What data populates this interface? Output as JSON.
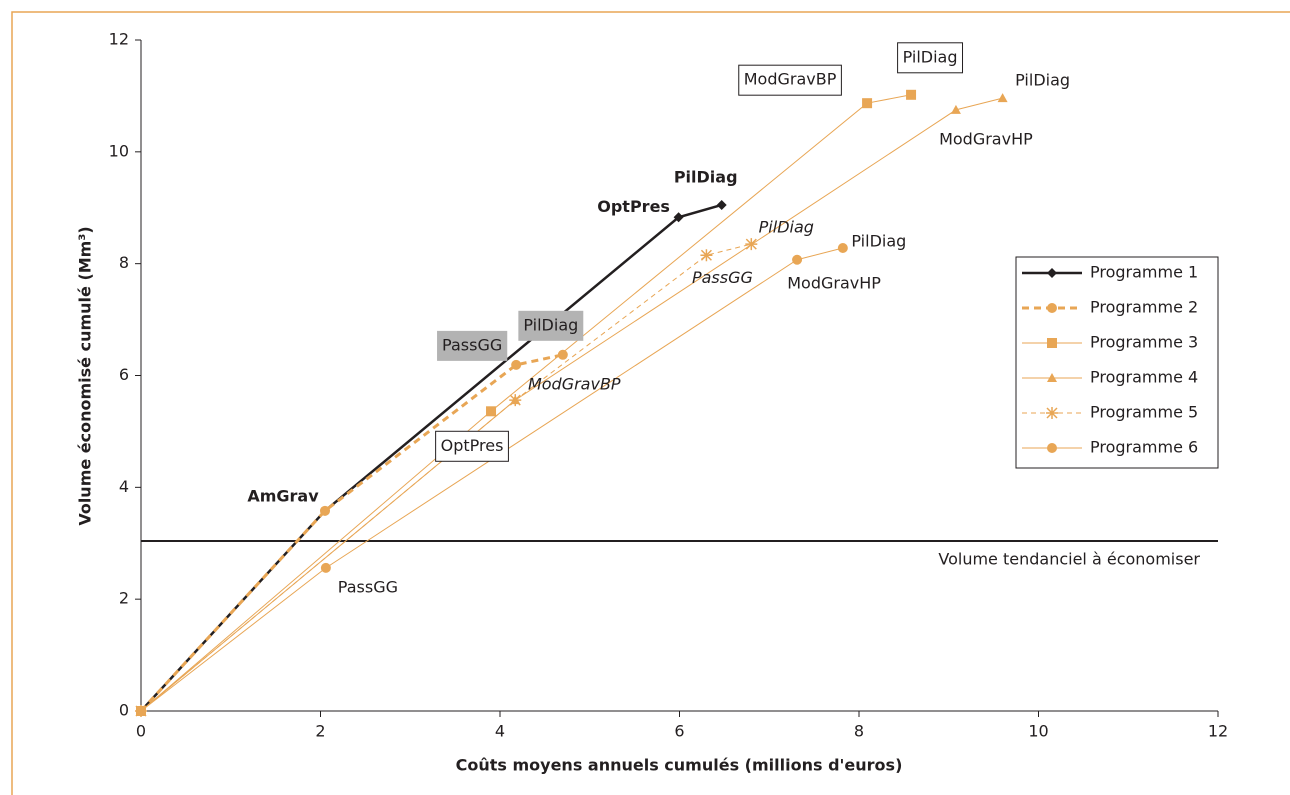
{
  "chart_data": {
    "type": "line",
    "x_label": "Coûts moyens annuels cumulés (millions d'euros)",
    "y_label": "Volume économisé cumulé (Mm³)",
    "xlim": [
      0,
      12
    ],
    "xticks": [
      0,
      2,
      4,
      6,
      8,
      10,
      12
    ],
    "ylim": [
      0,
      12
    ],
    "yticks": [
      0,
      2,
      4,
      6,
      8,
      10,
      12
    ],
    "legend_position": "right",
    "reference_line": {
      "value": 3.04,
      "label": "Volume tendanciel à économiser",
      "color": "#231f20"
    },
    "series": [
      {
        "name": "Programme 1",
        "color": "#231f20",
        "marker": "diamond",
        "dashed": false,
        "width": 2.5,
        "label_style": "bold",
        "x": [
          0,
          2.05,
          5.99,
          6.47
        ],
        "values": [
          0,
          3.58,
          8.83,
          9.05
        ],
        "point_labels": [
          null,
          "AmGrav",
          "OptPres",
          "PilDiag"
        ]
      },
      {
        "name": "Programme 2",
        "color": "#e8a655",
        "marker": "circle",
        "dashed": true,
        "width": 3,
        "label_style": "shaded",
        "x": [
          0,
          2.05,
          4.18,
          4.7
        ],
        "values": [
          0,
          3.58,
          6.19,
          6.37
        ],
        "point_labels": [
          null,
          null,
          "PassGG",
          "PilDiag"
        ]
      },
      {
        "name": "Programme 3",
        "color": "#e8a655",
        "marker": "square",
        "dashed": false,
        "width": 1,
        "label_style": "boxed",
        "x": [
          0,
          3.9,
          8.09,
          8.58
        ],
        "values": [
          0,
          5.36,
          10.87,
          11.02
        ],
        "point_labels": [
          null,
          "OptPres",
          "ModGravBP",
          "PilDiag"
        ]
      },
      {
        "name": "Programme 4",
        "color": "#e8a655",
        "marker": "triangle",
        "dashed": false,
        "width": 1,
        "label_style": "plain",
        "x": [
          0,
          4.17,
          9.08,
          9.6
        ],
        "values": [
          0,
          5.56,
          10.75,
          10.96
        ],
        "point_labels": [
          null,
          null,
          "ModGravHP",
          "PilDiag"
        ]
      },
      {
        "name": "Programme 5",
        "color": "#e8a655",
        "marker": "star",
        "dashed": true,
        "width": 1,
        "label_style": "italic",
        "x": [
          0,
          4.17,
          6.3,
          6.8
        ],
        "values": [
          0,
          5.56,
          8.15,
          8.35
        ],
        "point_labels": [
          null,
          "ModGravBP",
          "PassGG",
          "PilDiag"
        ]
      },
      {
        "name": "Programme 6",
        "color": "#e8a655",
        "marker": "circle",
        "dashed": false,
        "width": 1,
        "label_style": "plain",
        "x": [
          0,
          2.06,
          7.31,
          7.82
        ],
        "values": [
          0,
          2.56,
          8.07,
          8.28
        ],
        "point_labels": [
          null,
          "PassGG",
          "ModGravHP",
          "PilDiag"
        ]
      }
    ]
  }
}
